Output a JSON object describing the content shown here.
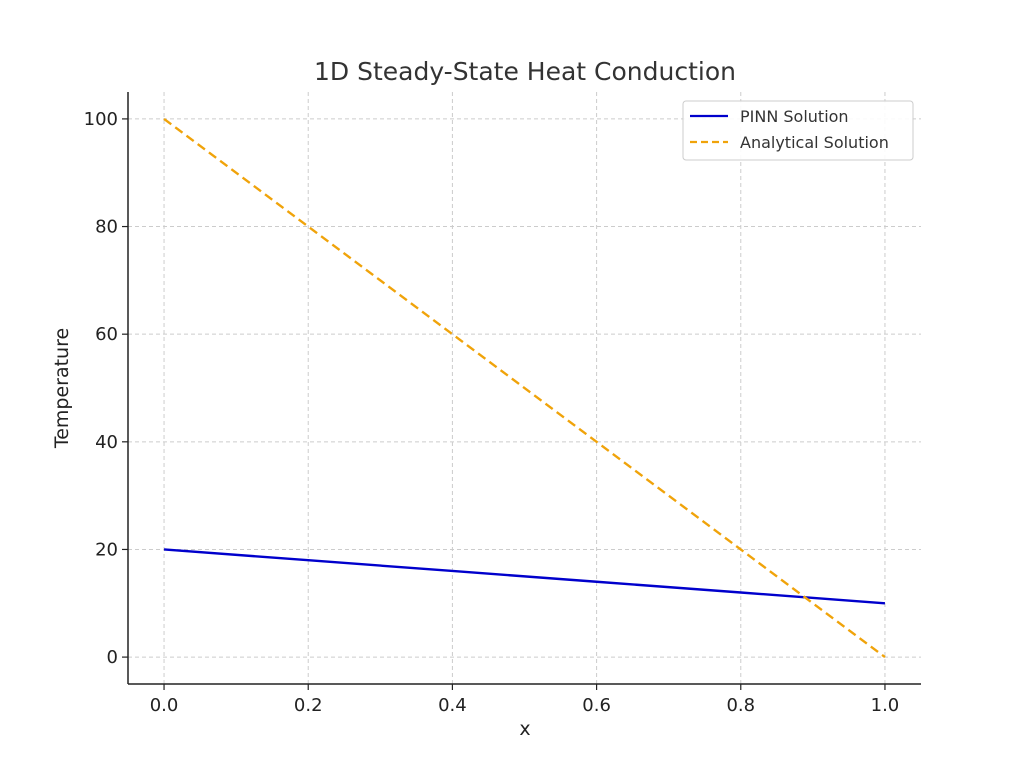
{
  "chart_data": {
    "type": "line",
    "title": "1D Steady-State Heat Conduction",
    "xlabel": "x",
    "ylabel": "Temperature",
    "xlim": [
      -0.05,
      1.05
    ],
    "ylim": [
      -5,
      105
    ],
    "xticks": [
      0.0,
      0.2,
      0.4,
      0.6,
      0.8,
      1.0
    ],
    "xtick_labels": [
      "0.0",
      "0.2",
      "0.4",
      "0.6",
      "0.8",
      "1.0"
    ],
    "yticks": [
      0,
      20,
      40,
      60,
      80,
      100
    ],
    "ytick_labels": [
      "0",
      "20",
      "40",
      "60",
      "80",
      "100"
    ],
    "grid": true,
    "legend_position": "top-right",
    "series": [
      {
        "name": "PINN Solution",
        "style": "solid",
        "color": "#0000cc",
        "x": [
          0.0,
          0.2,
          0.4,
          0.6,
          0.8,
          1.0
        ],
        "y": [
          20,
          18,
          16,
          14,
          12,
          10
        ]
      },
      {
        "name": "Analytical Solution",
        "style": "dashed",
        "color": "#f0a30a",
        "x": [
          0.0,
          0.2,
          0.4,
          0.6,
          0.8,
          1.0
        ],
        "y": [
          100,
          80,
          60,
          40,
          20,
          0
        ]
      }
    ]
  }
}
